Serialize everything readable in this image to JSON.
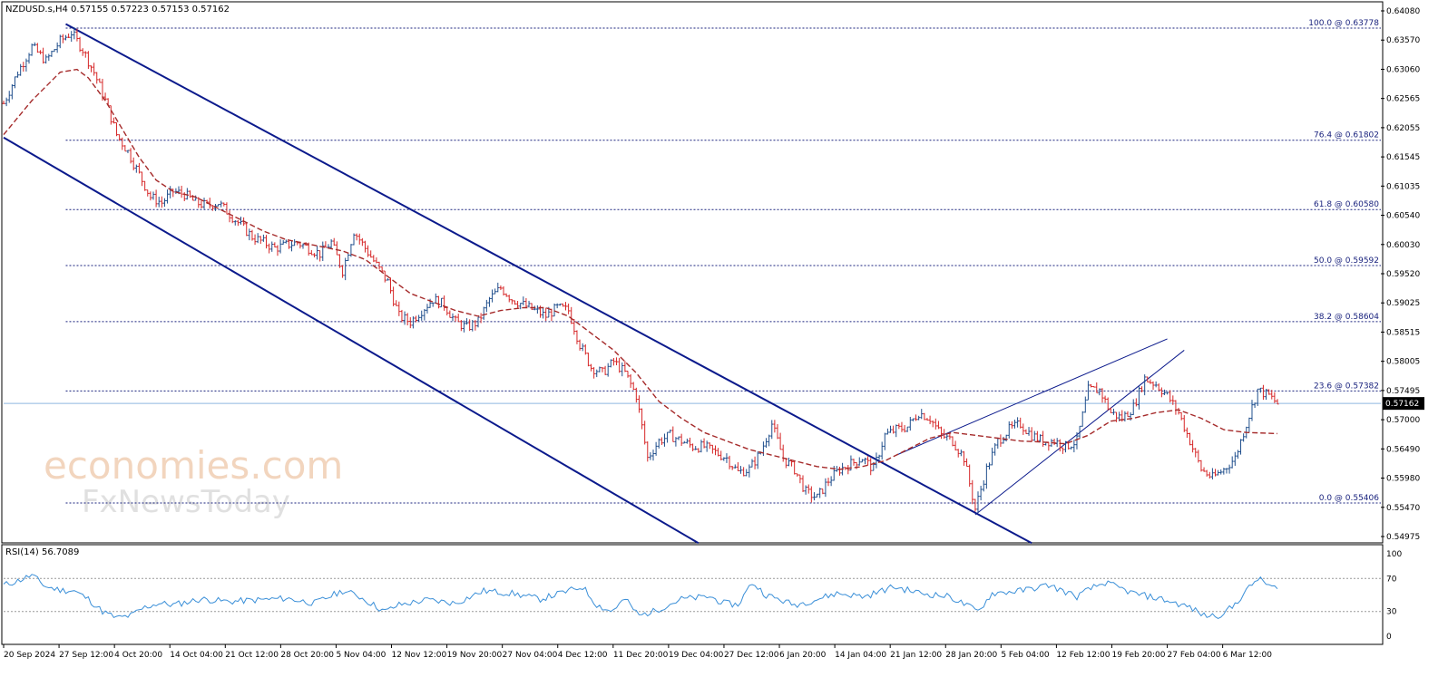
{
  "header": {
    "symbol_info": "NZDUSD.s,H4  0.57155 0.57223 0.57153 0.57162"
  },
  "watermark": {
    "line1": "economies.com",
    "line2": "FxNewsToday"
  },
  "colors": {
    "bull_candle": "#1f4e8c",
    "bear_candle": "#d62728",
    "moving_average": "#a52a2a",
    "channel": "#0b1a8c",
    "fib_level": "#1a237e",
    "rsi_line": "#3a8fd8",
    "current_price_line": "#8fb8e0"
  },
  "chart_data": [
    {
      "type": "candlestick",
      "title": "NZDUSD.s,H4",
      "ohlc_readout": {
        "open": 0.57155,
        "high": 0.57223,
        "low": 0.57153,
        "close": 0.57162
      },
      "current_price": 0.57162,
      "current_price_label": "0.57162",
      "ylim": [
        0.5472,
        0.6421
      ],
      "y_ticks": [
        "0.64080",
        "0.63570",
        "0.63060",
        "0.62565",
        "0.62055",
        "0.61545",
        "0.61035",
        "0.60540",
        "0.60030",
        "0.59520",
        "0.59025",
        "0.58515",
        "0.58005",
        "0.57495",
        "0.57000",
        "0.56490",
        "0.55980",
        "0.55470",
        "0.54975"
      ],
      "x_ticks": [
        "20 Sep 2024",
        "27 Sep 12:00",
        "4 Oct 20:00",
        "14 Oct 04:00",
        "21 Oct 12:00",
        "28 Oct 20:00",
        "5 Nov 04:00",
        "12 Nov 12:00",
        "19 Nov 20:00",
        "27 Nov 04:00",
        "4 Dec 12:00",
        "11 Dec 20:00",
        "19 Dec 04:00",
        "27 Dec 12:00",
        "6 Jan 20:00",
        "14 Jan 04:00",
        "21 Jan 12:00",
        "28 Jan 20:00",
        "5 Feb 04:00",
        "12 Feb 12:00",
        "19 Feb 20:00",
        "27 Feb 04:00",
        "6 Mar 12:00"
      ],
      "fib_levels": [
        {
          "level": 100.0,
          "price": 0.63778,
          "label": "100.0 @ 0.63778"
        },
        {
          "level": 76.4,
          "price": 0.61802,
          "label": "76.4 @ 0.61802"
        },
        {
          "level": 61.8,
          "price": 0.6058,
          "label": "61.8 @ 0.60580"
        },
        {
          "level": 50.0,
          "price": 0.59592,
          "label": "50.0 @ 0.59592"
        },
        {
          "level": 38.2,
          "price": 0.58604,
          "label": "38.2 @ 0.58604"
        },
        {
          "level": 23.6,
          "price": 0.57382,
          "label": "23.6 @ 0.57382"
        },
        {
          "level": 0.0,
          "price": 0.55406,
          "label": "0.0 @ 0.55406"
        }
      ],
      "close_path": [
        [
          0,
          0.6245
        ],
        [
          5,
          0.63
        ],
        [
          10,
          0.6345
        ],
        [
          15,
          0.632
        ],
        [
          20,
          0.6355
        ],
        [
          24,
          0.637
        ],
        [
          28,
          0.634
        ],
        [
          32,
          0.63
        ],
        [
          36,
          0.625
        ],
        [
          40,
          0.619
        ],
        [
          44,
          0.616
        ],
        [
          48,
          0.612
        ],
        [
          52,
          0.608
        ],
        [
          56,
          0.607
        ],
        [
          60,
          0.609
        ],
        [
          64,
          0.6085
        ],
        [
          68,
          0.607
        ],
        [
          72,
          0.6065
        ],
        [
          76,
          0.607
        ],
        [
          80,
          0.605
        ],
        [
          84,
          0.603
        ],
        [
          88,
          0.601
        ],
        [
          92,
          0.6
        ],
        [
          96,
          0.599
        ],
        [
          100,
          0.5995
        ],
        [
          104,
          0.6
        ],
        [
          108,
          0.599
        ],
        [
          112,
          0.598
        ],
        [
          116,
          0.6
        ],
        [
          120,
          0.595
        ],
        [
          124,
          0.602
        ],
        [
          128,
          0.599
        ],
        [
          132,
          0.596
        ],
        [
          136,
          0.593
        ],
        [
          140,
          0.587
        ],
        [
          144,
          0.586
        ],
        [
          148,
          0.588
        ],
        [
          152,
          0.59
        ],
        [
          156,
          0.589
        ],
        [
          160,
          0.586
        ],
        [
          164,
          0.585
        ],
        [
          168,
          0.586
        ],
        [
          172,
          0.59
        ],
        [
          176,
          0.592
        ],
        [
          180,
          0.59
        ],
        [
          184,
          0.589
        ],
        [
          188,
          0.588
        ],
        [
          192,
          0.587
        ],
        [
          196,
          0.5885
        ],
        [
          200,
          0.588
        ],
        [
          204,
          0.582
        ],
        [
          208,
          0.578
        ],
        [
          212,
          0.577
        ],
        [
          216,
          0.579
        ],
        [
          220,
          0.577
        ],
        [
          224,
          0.573
        ],
        [
          228,
          0.562
        ],
        [
          232,
          0.565
        ],
        [
          236,
          0.566
        ],
        [
          240,
          0.565
        ],
        [
          244,
          0.564
        ],
        [
          248,
          0.564
        ],
        [
          252,
          0.563
        ],
        [
          256,
          0.562
        ],
        [
          260,
          0.5595
        ],
        [
          264,
          0.56
        ],
        [
          268,
          0.563
        ],
        [
          272,
          0.568
        ],
        [
          276,
          0.562
        ],
        [
          280,
          0.56
        ],
        [
          284,
          0.556
        ],
        [
          288,
          0.555
        ],
        [
          292,
          0.558
        ],
        [
          296,
          0.56
        ],
        [
          300,
          0.561
        ],
        [
          304,
          0.562
        ],
        [
          308,
          0.56
        ],
        [
          312,
          0.566
        ],
        [
          316,
          0.567
        ],
        [
          320,
          0.5675
        ],
        [
          324,
          0.57
        ],
        [
          328,
          0.569
        ],
        [
          332,
          0.566
        ],
        [
          336,
          0.565
        ],
        [
          340,
          0.562
        ],
        [
          344,
          0.553
        ],
        [
          348,
          0.56
        ],
        [
          352,
          0.565
        ],
        [
          356,
          0.567
        ],
        [
          360,
          0.568
        ],
        [
          364,
          0.566
        ],
        [
          368,
          0.565
        ],
        [
          372,
          0.565
        ],
        [
          376,
          0.564
        ],
        [
          380,
          0.565
        ],
        [
          384,
          0.574
        ],
        [
          388,
          0.574
        ],
        [
          392,
          0.57
        ],
        [
          396,
          0.569
        ],
        [
          400,
          0.571
        ],
        [
          404,
          0.576
        ],
        [
          408,
          0.575
        ],
        [
          412,
          0.573
        ],
        [
          416,
          0.57
        ],
        [
          420,
          0.565
        ],
        [
          424,
          0.56
        ],
        [
          428,
          0.5585
        ],
        [
          432,
          0.56
        ],
        [
          436,
          0.562
        ],
        [
          440,
          0.568
        ],
        [
          444,
          0.574
        ],
        [
          448,
          0.573
        ],
        [
          451,
          0.5716
        ]
      ],
      "moving_average_path": [
        [
          0,
          0.619
        ],
        [
          10,
          0.625
        ],
        [
          20,
          0.63
        ],
        [
          26,
          0.6305
        ],
        [
          30,
          0.629
        ],
        [
          36,
          0.625
        ],
        [
          42,
          0.62
        ],
        [
          48,
          0.615
        ],
        [
          54,
          0.611
        ],
        [
          60,
          0.609
        ],
        [
          68,
          0.608
        ],
        [
          76,
          0.606
        ],
        [
          84,
          0.604
        ],
        [
          92,
          0.602
        ],
        [
          100,
          0.6005
        ],
        [
          110,
          0.5995
        ],
        [
          120,
          0.5985
        ],
        [
          128,
          0.597
        ],
        [
          136,
          0.594
        ],
        [
          144,
          0.591
        ],
        [
          152,
          0.5895
        ],
        [
          160,
          0.588
        ],
        [
          168,
          0.587
        ],
        [
          176,
          0.588
        ],
        [
          184,
          0.5885
        ],
        [
          192,
          0.5885
        ],
        [
          200,
          0.587
        ],
        [
          208,
          0.584
        ],
        [
          216,
          0.581
        ],
        [
          224,
          0.577
        ],
        [
          232,
          0.572
        ],
        [
          240,
          0.569
        ],
        [
          248,
          0.5665
        ],
        [
          256,
          0.565
        ],
        [
          264,
          0.5635
        ],
        [
          272,
          0.5625
        ],
        [
          280,
          0.5615
        ],
        [
          288,
          0.5605
        ],
        [
          296,
          0.56
        ],
        [
          304,
          0.5605
        ],
        [
          312,
          0.5615
        ],
        [
          320,
          0.5635
        ],
        [
          328,
          0.5655
        ],
        [
          336,
          0.5665
        ],
        [
          344,
          0.566
        ],
        [
          352,
          0.5655
        ],
        [
          360,
          0.565
        ],
        [
          368,
          0.5648
        ],
        [
          376,
          0.5645
        ],
        [
          384,
          0.566
        ],
        [
          392,
          0.5685
        ],
        [
          400,
          0.569
        ],
        [
          408,
          0.57
        ],
        [
          416,
          0.5705
        ],
        [
          424,
          0.569
        ],
        [
          432,
          0.567
        ],
        [
          440,
          0.5665
        ],
        [
          451,
          0.5663
        ]
      ],
      "trend_lines": [
        {
          "name": "channel-upper",
          "from": [
            22,
            0.6385
          ],
          "to": [
            364,
            0.547
          ]
        },
        {
          "name": "channel-lower",
          "from": [
            0,
            0.6185
          ],
          "to": [
            246,
            0.547
          ]
        },
        {
          "name": "wedge-upper",
          "from": [
            316,
            0.5625
          ],
          "to": [
            412,
            0.583
          ]
        },
        {
          "name": "wedge-lower",
          "from": [
            344,
            0.552
          ],
          "to": [
            418,
            0.581
          ]
        }
      ]
    },
    {
      "type": "line",
      "title": "RSI(14) 56.7089",
      "ylim": [
        0,
        100
      ],
      "y_ticks": [
        "100",
        "70",
        "30",
        "0"
      ],
      "levels": [
        70,
        30
      ],
      "values": [
        [
          0,
          62
        ],
        [
          5,
          67
        ],
        [
          10,
          74
        ],
        [
          15,
          60
        ],
        [
          20,
          56
        ],
        [
          25,
          55
        ],
        [
          30,
          45
        ],
        [
          35,
          30
        ],
        [
          40,
          22
        ],
        [
          45,
          25
        ],
        [
          50,
          35
        ],
        [
          55,
          40
        ],
        [
          60,
          38
        ],
        [
          70,
          45
        ],
        [
          80,
          42
        ],
        [
          90,
          44
        ],
        [
          100,
          46
        ],
        [
          110,
          40
        ],
        [
          120,
          55
        ],
        [
          125,
          50
        ],
        [
          130,
          40
        ],
        [
          135,
          30
        ],
        [
          140,
          38
        ],
        [
          150,
          44
        ],
        [
          160,
          40
        ],
        [
          170,
          55
        ],
        [
          180,
          52
        ],
        [
          190,
          45
        ],
        [
          200,
          55
        ],
        [
          205,
          60
        ],
        [
          210,
          38
        ],
        [
          215,
          30
        ],
        [
          220,
          45
        ],
        [
          225,
          25
        ],
        [
          230,
          30
        ],
        [
          240,
          45
        ],
        [
          250,
          48
        ],
        [
          255,
          40
        ],
        [
          260,
          38
        ],
        [
          265,
          65
        ],
        [
          270,
          50
        ],
        [
          280,
          38
        ],
        [
          285,
          42
        ],
        [
          295,
          52
        ],
        [
          305,
          48
        ],
        [
          315,
          60
        ],
        [
          325,
          52
        ],
        [
          335,
          48
        ],
        [
          345,
          30
        ],
        [
          350,
          52
        ],
        [
          360,
          55
        ],
        [
          370,
          62
        ],
        [
          380,
          48
        ],
        [
          385,
          58
        ],
        [
          390,
          65
        ],
        [
          400,
          52
        ],
        [
          410,
          45
        ],
        [
          420,
          35
        ],
        [
          425,
          25
        ],
        [
          430,
          25
        ],
        [
          435,
          35
        ],
        [
          440,
          55
        ],
        [
          444,
          70
        ],
        [
          448,
          62
        ],
        [
          451,
          56.7
        ]
      ]
    }
  ]
}
